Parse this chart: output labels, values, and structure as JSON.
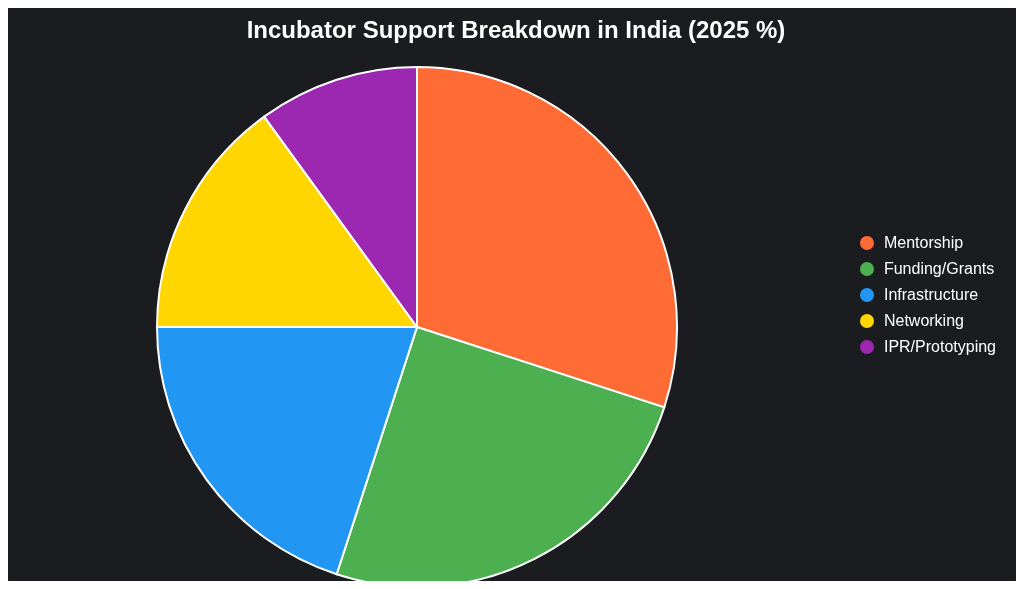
{
  "chart_data": {
    "type": "pie",
    "title": "Incubator Support Breakdown in India (2025 %)",
    "categories": [
      "Mentorship",
      "Funding/Grants",
      "Infrastructure",
      "Networking",
      "IPR/Prototyping"
    ],
    "values": [
      30,
      25,
      20,
      15,
      10
    ],
    "colors": [
      "#ff6b35",
      "#4caf50",
      "#2196f3",
      "#ffd600",
      "#9c27b0"
    ],
    "legend": "right"
  }
}
